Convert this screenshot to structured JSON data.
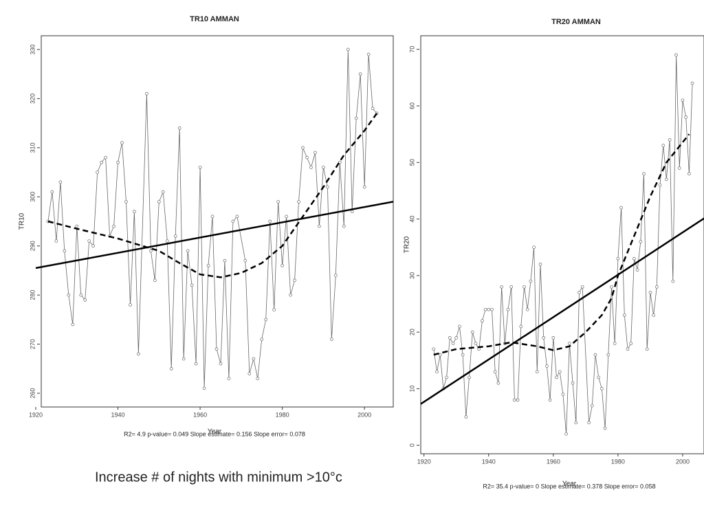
{
  "caption": "Increase # of nights with minimum >10°c",
  "chart_data": [
    {
      "type": "line",
      "title": "TR10   AMMAN",
      "xlabel": "Year",
      "ylabel": "TR10",
      "subtitle": "R2= 4.9  p-value= 0.049  Slope estimate= 0.156  Slope error= 0.078",
      "x": [
        1923,
        1924,
        1925,
        1926,
        1927,
        1928,
        1929,
        1930,
        1931,
        1932,
        1933,
        1934,
        1935,
        1936,
        1937,
        1938,
        1939,
        1940,
        1941,
        1942,
        1943,
        1944,
        1945,
        1947,
        1948,
        1949,
        1950,
        1951,
        1952,
        1953,
        1954,
        1955,
        1956,
        1957,
        1958,
        1959,
        1960,
        1961,
        1962,
        1963,
        1964,
        1965,
        1966,
        1967,
        1968,
        1969,
        1971,
        1972,
        1973,
        1974,
        1975,
        1976,
        1977,
        1978,
        1979,
        1980,
        1981,
        1982,
        1983,
        1984,
        1985,
        1986,
        1987,
        1988,
        1989,
        1990,
        1991,
        1992,
        1993,
        1994,
        1995,
        1996,
        1997,
        1998,
        1999,
        2000,
        2001,
        2002,
        2003
      ],
      "series": [
        {
          "color": "#666666",
          "values": [
            295,
            301,
            291,
            303,
            289,
            280,
            274,
            294,
            280,
            279,
            291,
            290,
            305,
            307,
            308,
            292,
            294,
            307,
            311,
            299,
            278,
            297,
            268,
            321,
            289,
            283,
            299,
            301,
            291,
            265,
            292,
            314,
            267,
            289,
            282,
            266,
            306,
            261,
            286,
            296,
            269,
            266,
            287,
            263,
            295,
            296,
            287,
            264,
            267,
            263,
            271,
            275,
            295,
            277,
            299,
            286,
            296,
            280,
            283,
            299,
            310,
            308,
            306,
            309,
            294,
            306,
            302,
            271,
            284,
            307,
            294,
            330,
            297,
            316,
            325,
            302,
            329,
            318,
            317
          ]
        }
      ],
      "trend": {
        "color": "#000000",
        "x": [
          1920,
          2007
        ],
        "values": [
          285.5,
          299
        ]
      },
      "smooth": {
        "color": "#000000",
        "x": [
          1923,
          1930,
          1940,
          1950,
          1955,
          1960,
          1965,
          1970,
          1975,
          1980,
          1985,
          1990,
          1995,
          2000,
          2003
        ],
        "values": [
          295,
          293.5,
          291.5,
          289,
          286.5,
          284.2,
          283.6,
          284.5,
          286.5,
          290,
          296,
          302,
          308.5,
          313.5,
          317
        ]
      },
      "xlim": [
        1920,
        2007
      ],
      "ylim": [
        257.2,
        332.8
      ],
      "xticks": [
        1920,
        1940,
        1960,
        1980,
        2000
      ],
      "yticks": [
        260,
        270,
        280,
        290,
        300,
        310,
        320,
        330
      ]
    },
    {
      "type": "line",
      "title": "TR20   AMMAN",
      "xlabel": "Year",
      "ylabel": "TR20",
      "subtitle": "R2= 35.4  p-value= 0  Slope estimate= 0.378  Slope error= 0.058",
      "x": [
        1923,
        1924,
        1925,
        1926,
        1927,
        1928,
        1929,
        1930,
        1931,
        1932,
        1933,
        1934,
        1935,
        1936,
        1937,
        1938,
        1939,
        1940,
        1941,
        1942,
        1943,
        1944,
        1945,
        1946,
        1947,
        1948,
        1949,
        1950,
        1951,
        1952,
        1953,
        1954,
        1955,
        1956,
        1957,
        1958,
        1959,
        1960,
        1961,
        1962,
        1963,
        1964,
        1965,
        1966,
        1967,
        1968,
        1969,
        1971,
        1972,
        1973,
        1974,
        1975,
        1976,
        1977,
        1978,
        1979,
        1980,
        1981,
        1982,
        1983,
        1984,
        1985,
        1986,
        1987,
        1988,
        1989,
        1990,
        1991,
        1992,
        1993,
        1994,
        1995,
        1996,
        1997,
        1998,
        1999,
        2000,
        2001,
        2002,
        2003
      ],
      "series": [
        {
          "color": "#666666",
          "values": [
            17,
            13,
            16,
            10,
            12,
            19,
            18,
            19,
            21,
            16,
            5,
            12,
            20,
            18,
            17,
            22,
            24,
            24,
            24,
            13,
            11,
            28,
            18,
            24,
            28,
            8,
            8,
            21,
            28,
            24,
            29,
            35,
            13,
            32,
            19,
            14,
            8,
            19,
            12,
            13,
            9,
            2,
            18,
            11,
            4,
            27,
            28,
            4,
            7,
            16,
            12,
            10,
            3,
            16,
            28,
            18,
            33,
            42,
            23,
            17,
            18,
            33,
            31,
            36,
            48,
            17,
            27,
            23,
            28,
            46,
            53,
            47,
            54,
            29,
            69,
            49,
            61,
            58,
            48,
            64
          ]
        }
      ],
      "trend": {
        "color": "#000000",
        "x": [
          1919,
          2006.6
        ],
        "values": [
          7.3,
          40.1
        ]
      },
      "smooth": {
        "color": "#000000",
        "x": [
          1923,
          1930,
          1940,
          1947,
          1955,
          1960,
          1965,
          1970,
          1975,
          1978,
          1980,
          1985,
          1990,
          1995,
          2002
        ],
        "values": [
          16,
          17,
          17.5,
          18.2,
          17.5,
          16.8,
          17.5,
          20,
          23,
          26,
          30,
          37,
          44,
          50,
          55
        ]
      },
      "xlim": [
        1919,
        2006.6
      ],
      "ylim": [
        -1.5,
        72.4
      ],
      "xticks": [
        1920,
        1940,
        1960,
        1980,
        2000
      ],
      "yticks": [
        0,
        10,
        20,
        30,
        40,
        50,
        60,
        70
      ]
    }
  ]
}
